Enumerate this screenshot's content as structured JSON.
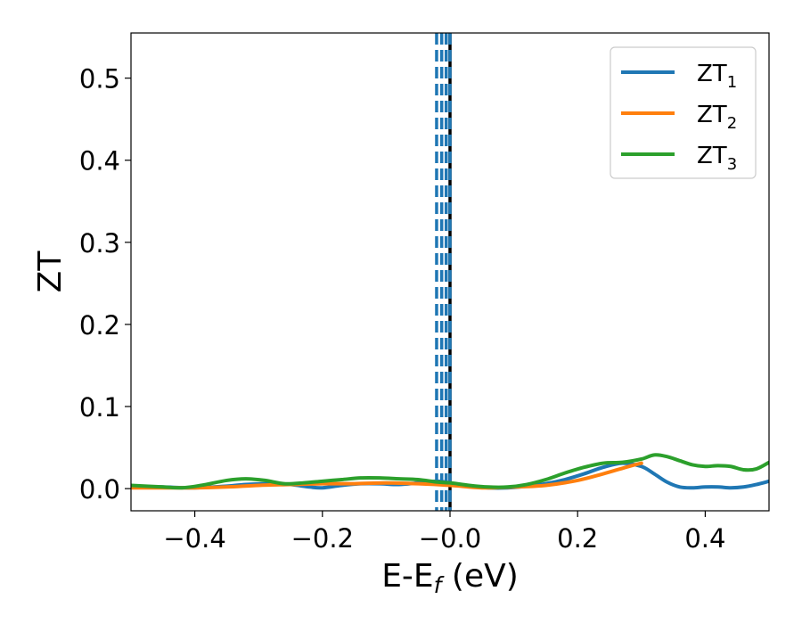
{
  "chart_data": {
    "type": "line",
    "title": "",
    "xlabel": {
      "main": "E-E",
      "sub": "f",
      "unit": " (eV)"
    },
    "ylabel": "ZT",
    "xlim": [
      -0.5,
      0.5
    ],
    "ylim": [
      -0.027,
      0.555
    ],
    "xticks": [
      -0.4,
      -0.2,
      0.0,
      0.2,
      0.4
    ],
    "xtick_labels": [
      "−0.4",
      "−0.2",
      "−0.0",
      "0.2",
      "0.4"
    ],
    "yticks": [
      0.0,
      0.1,
      0.2,
      0.3,
      0.4,
      0.5
    ],
    "ytick_labels": [
      "0.0",
      "0.1",
      "0.2",
      "0.3",
      "0.4",
      "0.5"
    ],
    "grid": false,
    "legend_position": "top-right",
    "series": [
      {
        "name": "ZT",
        "sub": "1",
        "color": "#1f77b4",
        "x": [
          -0.5,
          -0.45,
          -0.4,
          -0.35,
          -0.32,
          -0.28,
          -0.25,
          -0.22,
          -0.2,
          -0.17,
          -0.14,
          -0.11,
          -0.08,
          -0.05,
          -0.02,
          0.0,
          0.03,
          0.06,
          0.09,
          0.12,
          0.15,
          0.18,
          0.21,
          0.24,
          0.27,
          0.3,
          0.32,
          0.34,
          0.36,
          0.38,
          0.4,
          0.42,
          0.44,
          0.46,
          0.48,
          0.5
        ],
        "y": [
          0.003,
          0.002,
          0.001,
          0.003,
          0.005,
          0.006,
          0.005,
          0.002,
          0.001,
          0.004,
          0.006,
          0.006,
          0.005,
          0.007,
          0.009,
          0.007,
          0.003,
          0.001,
          0.001,
          0.003,
          0.006,
          0.011,
          0.018,
          0.026,
          0.031,
          0.027,
          0.018,
          0.008,
          0.002,
          0.001,
          0.002,
          0.002,
          0.001,
          0.002,
          0.005,
          0.009
        ]
      },
      {
        "name": "ZT",
        "sub": "2",
        "color": "#ff7f0e",
        "x": [
          -0.5,
          -0.45,
          -0.4,
          -0.35,
          -0.3,
          -0.25,
          -0.2,
          -0.15,
          -0.1,
          -0.05,
          0.0,
          0.05,
          0.1,
          0.15,
          0.2,
          0.24,
          0.28,
          0.3
        ],
        "y": [
          0.001,
          0.001,
          0.001,
          0.002,
          0.004,
          0.005,
          0.006,
          0.006,
          0.007,
          0.006,
          0.004,
          0.001,
          0.002,
          0.004,
          0.01,
          0.018,
          0.027,
          0.031
        ]
      },
      {
        "name": "ZT",
        "sub": "3",
        "color": "#2ca02c",
        "x": [
          -0.5,
          -0.45,
          -0.42,
          -0.39,
          -0.35,
          -0.32,
          -0.29,
          -0.26,
          -0.23,
          -0.2,
          -0.17,
          -0.14,
          -0.11,
          -0.08,
          -0.05,
          -0.02,
          0.0,
          0.03,
          0.06,
          0.09,
          0.12,
          0.15,
          0.18,
          0.21,
          0.24,
          0.27,
          0.3,
          0.32,
          0.34,
          0.36,
          0.38,
          0.4,
          0.42,
          0.44,
          0.46,
          0.48,
          0.5
        ],
        "y": [
          0.004,
          0.002,
          0.001,
          0.004,
          0.01,
          0.012,
          0.01,
          0.006,
          0.007,
          0.009,
          0.011,
          0.013,
          0.013,
          0.012,
          0.011,
          0.008,
          0.007,
          0.004,
          0.002,
          0.002,
          0.005,
          0.011,
          0.019,
          0.026,
          0.031,
          0.032,
          0.036,
          0.041,
          0.039,
          0.034,
          0.029,
          0.027,
          0.028,
          0.027,
          0.023,
          0.024,
          0.032
        ]
      }
    ],
    "vlines": [
      {
        "x": -0.021,
        "color": "#1f77b4",
        "style": "dashed"
      },
      {
        "x": -0.013,
        "color": "#1f77b4",
        "style": "dashed"
      },
      {
        "x": -0.006,
        "color": "#1f77b4",
        "style": "dashed"
      },
      {
        "x": 0.0,
        "color": "#000000",
        "style": "solid"
      },
      {
        "x": 0.0,
        "color": "#1f77b4",
        "style": "dashed"
      }
    ]
  }
}
